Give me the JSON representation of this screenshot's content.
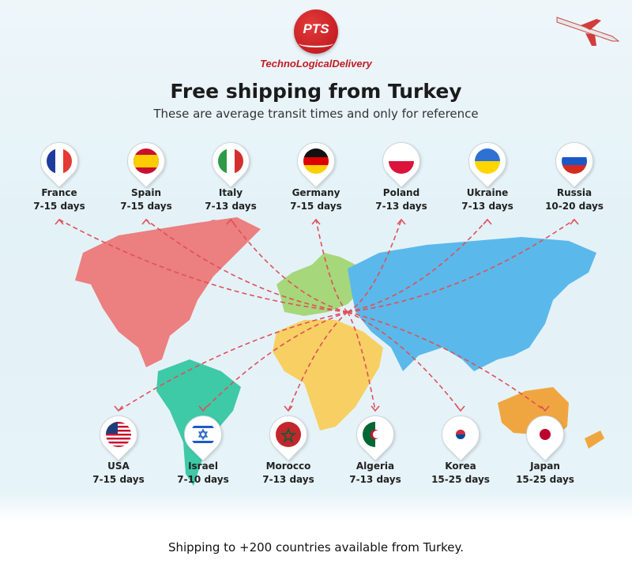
{
  "brand": {
    "logo_text": "PTS",
    "tagline": "TechnoLogicalDelivery",
    "color": "#c31b22"
  },
  "title": "Free shipping from Turkey",
  "subtitle": "These are average transit times and only for reference",
  "origin": "Turkey",
  "top_destinations": [
    {
      "name": "France",
      "days": "7-15 days",
      "flag": "france-flag"
    },
    {
      "name": "Spain",
      "days": "7-15 days",
      "flag": "spain-flag"
    },
    {
      "name": "Italy",
      "days": "7-13 days",
      "flag": "italy-flag"
    },
    {
      "name": "Germany",
      "days": "7-15 days",
      "flag": "germany-flag"
    },
    {
      "name": "Poland",
      "days": "7-13 days",
      "flag": "poland-flag"
    },
    {
      "name": "Ukraine",
      "days": "7-13 days",
      "flag": "ukraine-flag"
    },
    {
      "name": "Russia",
      "days": "10-20 days",
      "flag": "russia-flag"
    }
  ],
  "bottom_destinations": [
    {
      "name": "USA",
      "days": "7-15 days",
      "flag": "usa-flag"
    },
    {
      "name": "Israel",
      "days": "7-10 days",
      "flag": "israel-flag"
    },
    {
      "name": "Morocco",
      "days": "7-13 days",
      "flag": "morocco-flag"
    },
    {
      "name": "Algeria",
      "days": "7-13 days",
      "flag": "algeria-flag"
    },
    {
      "name": "Korea",
      "days": "15-25 days",
      "flag": "korea-flag"
    },
    {
      "name": "Japan",
      "days": "15-25 days",
      "flag": "japan-flag"
    }
  ],
  "continent_colors": {
    "north_america": "#ec7f7f",
    "south_america": "#3ec9a7",
    "europe": "#a6d77a",
    "africa": "#f7cf63",
    "asia": "#5bb8ea",
    "oceania": "#f0a640"
  },
  "route_color": "#e0505a",
  "footer": "Shipping to +200 countries available from Turkey."
}
